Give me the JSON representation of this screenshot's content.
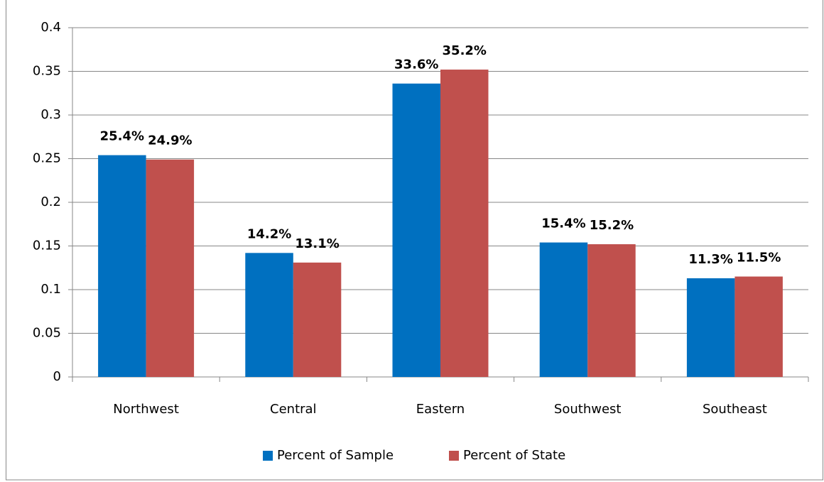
{
  "chart_data": {
    "type": "bar",
    "categories": [
      "Northwest",
      "Central",
      "Eastern",
      "Southwest",
      "Southeast"
    ],
    "series": [
      {
        "name": "Percent of Sample",
        "color": "#0070c0",
        "values": [
          0.254,
          0.142,
          0.336,
          0.154,
          0.113
        ],
        "value_labels": [
          "25.4%",
          "14.2%",
          "33.6%",
          "15.4%",
          "11.3%"
        ]
      },
      {
        "name": "Percent of State",
        "color": "#c0504d",
        "values": [
          0.249,
          0.131,
          0.352,
          0.152,
          0.115
        ],
        "value_labels": [
          "24.9%",
          "13.1%",
          "35.2%",
          "15.2%",
          "11.5%"
        ]
      }
    ],
    "ylim": [
      0,
      0.4
    ],
    "yticks": [
      0,
      0.05,
      0.1,
      0.15,
      0.2,
      0.25,
      0.3,
      0.35,
      0.4
    ],
    "grid": true,
    "legend": "bottom"
  }
}
